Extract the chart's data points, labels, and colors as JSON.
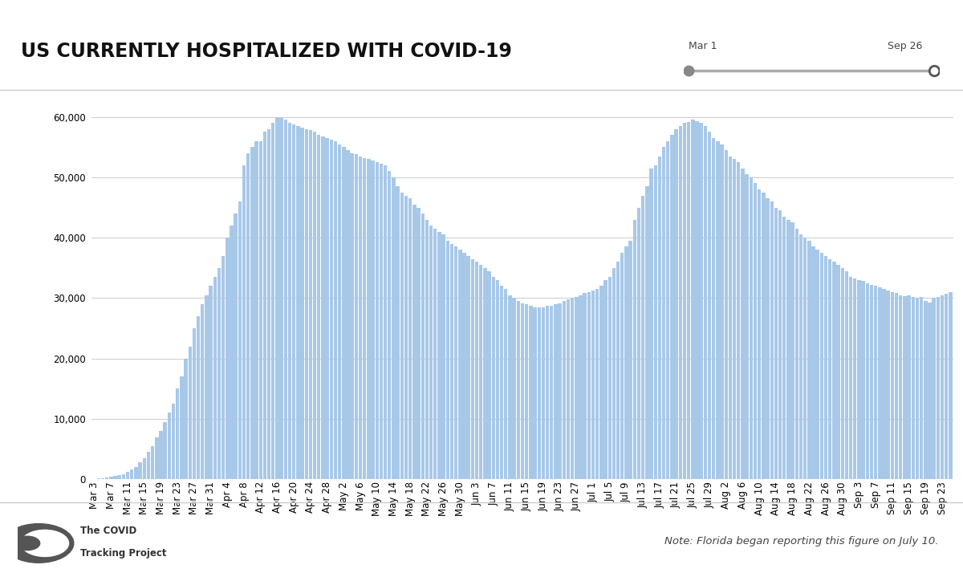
{
  "title": "US CURRENTLY HOSPITALIZED WITH COVID-19",
  "bar_color": "#a8c8e8",
  "background_color": "#ffffff",
  "ylim": [
    0,
    63000
  ],
  "yticks": [
    0,
    10000,
    20000,
    30000,
    40000,
    50000,
    60000
  ],
  "note": "Note: Florida began reporting this figure on July 10.",
  "dates": [
    "Mar 3",
    "Mar 4",
    "Mar 5",
    "Mar 6",
    "Mar 7",
    "Mar 8",
    "Mar 9",
    "Mar 10",
    "Mar 11",
    "Mar 12",
    "Mar 13",
    "Mar 14",
    "Mar 15",
    "Mar 16",
    "Mar 17",
    "Mar 18",
    "Mar 19",
    "Mar 20",
    "Mar 21",
    "Mar 22",
    "Mar 23",
    "Mar 24",
    "Mar 25",
    "Mar 26",
    "Mar 27",
    "Mar 28",
    "Mar 29",
    "Mar 30",
    "Mar 31",
    "Apr 1",
    "Apr 2",
    "Apr 3",
    "Apr 4",
    "Apr 5",
    "Apr 6",
    "Apr 7",
    "Apr 8",
    "Apr 9",
    "Apr 10",
    "Apr 11",
    "Apr 12",
    "Apr 13",
    "Apr 14",
    "Apr 15",
    "Apr 16",
    "Apr 17",
    "Apr 18",
    "Apr 19",
    "Apr 20",
    "Apr 21",
    "Apr 22",
    "Apr 23",
    "Apr 24",
    "Apr 25",
    "Apr 26",
    "Apr 27",
    "Apr 28",
    "Apr 29",
    "Apr 30",
    "May 1",
    "May 2",
    "May 3",
    "May 4",
    "May 5",
    "May 6",
    "May 7",
    "May 8",
    "May 9",
    "May 10",
    "May 11",
    "May 12",
    "May 13",
    "May 14",
    "May 15",
    "May 16",
    "May 17",
    "May 18",
    "May 19",
    "May 20",
    "May 21",
    "May 22",
    "May 23",
    "May 24",
    "May 25",
    "May 26",
    "May 27",
    "May 28",
    "May 29",
    "May 30",
    "May 31",
    "Jun 1",
    "Jun 2",
    "Jun 3",
    "Jun 4",
    "Jun 5",
    "Jun 6",
    "Jun 7",
    "Jun 8",
    "Jun 9",
    "Jun 10",
    "Jun 11",
    "Jun 12",
    "Jun 13",
    "Jun 14",
    "Jun 15",
    "Jun 16",
    "Jun 17",
    "Jun 18",
    "Jun 19",
    "Jun 20",
    "Jun 21",
    "Jun 22",
    "Jun 23",
    "Jun 24",
    "Jun 25",
    "Jun 26",
    "Jun 27",
    "Jun 28",
    "Jun 29",
    "Jun 30",
    "Jul 1",
    "Jul 2",
    "Jul 3",
    "Jul 4",
    "Jul 5",
    "Jul 6",
    "Jul 7",
    "Jul 8",
    "Jul 9",
    "Jul 10",
    "Jul 11",
    "Jul 12",
    "Jul 13",
    "Jul 14",
    "Jul 15",
    "Jul 16",
    "Jul 17",
    "Jul 18",
    "Jul 19",
    "Jul 20",
    "Jul 21",
    "Jul 22",
    "Jul 23",
    "Jul 24",
    "Jul 25",
    "Jul 26",
    "Jul 27",
    "Jul 28",
    "Jul 29",
    "Jul 30",
    "Jul 31",
    "Aug 1",
    "Aug 2",
    "Aug 3",
    "Aug 4",
    "Aug 5",
    "Aug 6",
    "Aug 7",
    "Aug 8",
    "Aug 9",
    "Aug 10",
    "Aug 11",
    "Aug 12",
    "Aug 13",
    "Aug 14",
    "Aug 15",
    "Aug 16",
    "Aug 17",
    "Aug 18",
    "Aug 19",
    "Aug 20",
    "Aug 21",
    "Aug 22",
    "Aug 23",
    "Aug 24",
    "Aug 25",
    "Aug 26",
    "Aug 27",
    "Aug 28",
    "Aug 29",
    "Aug 30",
    "Aug 31",
    "Sep 1",
    "Sep 2",
    "Sep 3",
    "Sep 4",
    "Sep 5",
    "Sep 6",
    "Sep 7",
    "Sep 8",
    "Sep 9",
    "Sep 10",
    "Sep 11",
    "Sep 12",
    "Sep 13",
    "Sep 14",
    "Sep 15",
    "Sep 16",
    "Sep 17",
    "Sep 18",
    "Sep 19",
    "Sep 20",
    "Sep 21",
    "Sep 22",
    "Sep 23",
    "Sep 24",
    "Sep 25"
  ],
  "values": [
    100,
    150,
    200,
    280,
    400,
    550,
    700,
    900,
    1200,
    1600,
    2000,
    2800,
    3500,
    4500,
    5500,
    7000,
    8000,
    9500,
    11000,
    12500,
    15000,
    17000,
    20000,
    22000,
    25000,
    27000,
    29000,
    30500,
    32000,
    33500,
    35000,
    37000,
    40000,
    42000,
    44000,
    46000,
    52000,
    54000,
    55000,
    56000,
    56000,
    57500,
    58000,
    59000,
    60000,
    59800,
    59500,
    59000,
    58800,
    58500,
    58200,
    58000,
    57800,
    57500,
    57000,
    56800,
    56500,
    56200,
    56000,
    55500,
    55000,
    54500,
    54000,
    53800,
    53500,
    53200,
    53000,
    52800,
    52500,
    52200,
    52000,
    51000,
    50000,
    48500,
    47500,
    47000,
    46500,
    45500,
    45000,
    44000,
    43000,
    42000,
    41500,
    41000,
    40500,
    39500,
    39000,
    38500,
    38000,
    37500,
    37000,
    36500,
    36000,
    35500,
    35000,
    34500,
    33500,
    33000,
    32000,
    31500,
    30500,
    30000,
    29500,
    29200,
    29000,
    28800,
    28500,
    28500,
    28500,
    28700,
    28800,
    29000,
    29200,
    29500,
    29800,
    30000,
    30200,
    30500,
    30800,
    31000,
    31200,
    31500,
    32000,
    33000,
    33500,
    35000,
    36000,
    37500,
    38500,
    39500,
    43000,
    45000,
    47000,
    48500,
    51500,
    52000,
    53500,
    55000,
    56000,
    57000,
    58000,
    58500,
    59000,
    59200,
    59500,
    59300,
    59000,
    58500,
    57500,
    56500,
    56000,
    55500,
    54500,
    53500,
    53000,
    52500,
    51500,
    50500,
    50000,
    49000,
    48000,
    47500,
    46500,
    46000,
    45000,
    44500,
    43500,
    43000,
    42500,
    41500,
    40500,
    40000,
    39500,
    38500,
    38000,
    37500,
    37000,
    36500,
    36000,
    35500,
    35000,
    34500,
    33500,
    33200,
    33000,
    32800,
    32500,
    32200,
    32000,
    31800,
    31500,
    31300,
    31000,
    30800,
    30500,
    30300,
    30500,
    30200,
    30000,
    30200,
    29500,
    29300,
    30000,
    30200,
    30400,
    30700,
    31000
  ],
  "tick_labels": [
    "Mar 3",
    "Mar 7",
    "Mar 11",
    "Mar 15",
    "Mar 19",
    "Mar 23",
    "Mar 27",
    "Mar 31",
    "Apr 4",
    "Apr 8",
    "Apr 12",
    "Apr 16",
    "Apr 20",
    "Apr 24",
    "Apr 28",
    "May 2",
    "May 6",
    "May 10",
    "May 14",
    "May 18",
    "May 22",
    "May 26",
    "May 30",
    "Jun 3",
    "Jun 7",
    "Jun 11",
    "Jun 15",
    "Jun 19",
    "Jun 23",
    "Jun 27",
    "Jul 1",
    "Jul 5",
    "Jul 9",
    "Jul 13",
    "Jul 17",
    "Jul 21",
    "Jul 25",
    "Jul 29",
    "Aug 2",
    "Aug 6",
    "Aug 10",
    "Aug 14",
    "Aug 18",
    "Aug 22",
    "Aug 26",
    "Aug 30",
    "Sep 3",
    "Sep 7",
    "Sep 11",
    "Sep 15",
    "Sep 19",
    "Sep 23"
  ],
  "slider_start": "Mar 1",
  "slider_end": "Sep 26",
  "title_fontsize": 17,
  "tick_fontsize": 8.5,
  "note_fontsize": 9.5
}
